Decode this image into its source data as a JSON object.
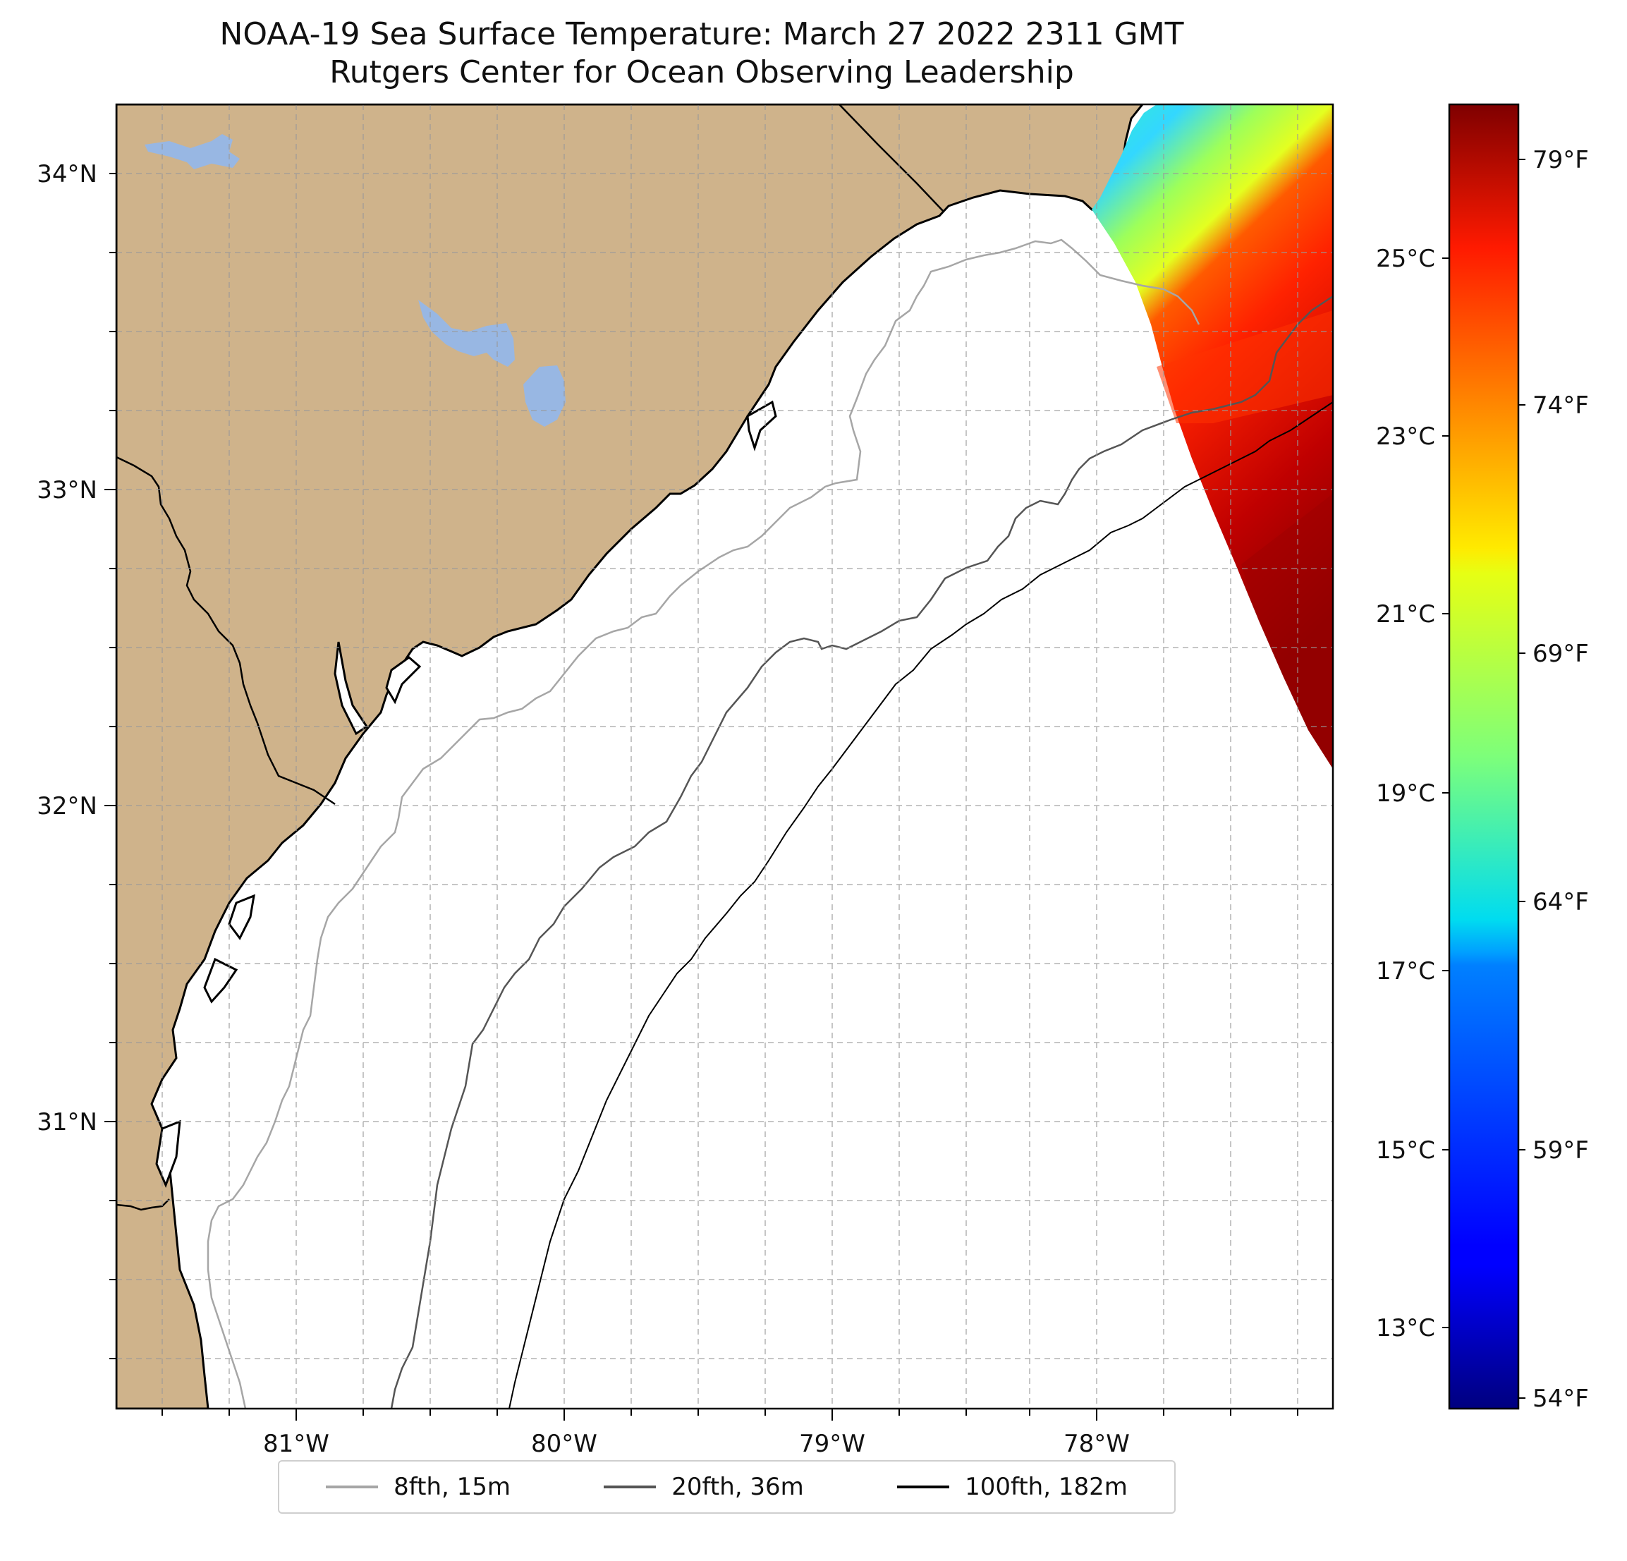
{
  "title": "NOAA-19 Sea Surface Temperature: March 27 2022 2311 GMT",
  "subtitle": "Rutgers Center for Ocean Observing Leadership",
  "map": {
    "lon_labels": [
      "81°W",
      "80°W",
      "79°W",
      "78°W"
    ],
    "lat_labels": [
      "34°N",
      "33°N",
      "32°N",
      "31°N"
    ],
    "land_color": "#cfb38b",
    "water_color": "#98b7e3",
    "ocean_color": "#ffffff"
  },
  "colorbar": {
    "colormap": "jet",
    "celsius_labels": [
      "25°C",
      "23°C",
      "21°C",
      "19°C",
      "17°C",
      "15°C",
      "13°C"
    ],
    "fahrenheit_labels": [
      "79°F",
      "74°F",
      "69°F",
      "64°F",
      "59°F",
      "54°F"
    ]
  },
  "legend": {
    "items": [
      {
        "label": "8fth, 15m",
        "color": "#a6a6a6"
      },
      {
        "label": "20fth, 36m",
        "color": "#555555"
      },
      {
        "label": "100fth, 182m",
        "color": "#000000"
      }
    ]
  }
}
